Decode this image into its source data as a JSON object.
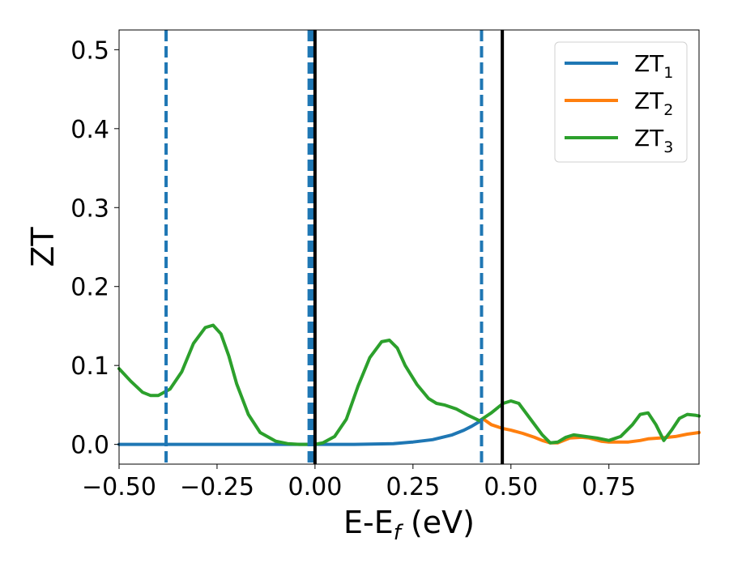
{
  "chart_data": {
    "type": "line",
    "xlabel_main": "E-E",
    "xlabel_sub": "f",
    "xlabel_unit": " (eV)",
    "ylabel": "ZT",
    "xlim": [
      -0.5,
      0.98
    ],
    "ylim": [
      -0.025,
      0.525
    ],
    "x_ticks": [
      -0.5,
      -0.25,
      0.0,
      0.25,
      0.5,
      0.75
    ],
    "x_tick_labels": [
      "−0.50",
      "−0.25",
      "0.00",
      "0.25",
      "0.50",
      "0.75"
    ],
    "y_ticks": [
      0.0,
      0.1,
      0.2,
      0.3,
      0.4,
      0.5
    ],
    "y_tick_labels": [
      "0.0",
      "0.1",
      "0.2",
      "0.3",
      "0.4",
      "0.5"
    ],
    "grid": false,
    "legend_position": "top-right",
    "dashed_vlines": [
      -0.38,
      -0.015,
      -0.008,
      0.425
    ],
    "solid_vlines": [
      0.0,
      0.478
    ],
    "series": [
      {
        "name": "ZT",
        "subscript": "1",
        "color": "#1f77b4",
        "x": [
          -0.5,
          -0.4,
          -0.3,
          -0.2,
          -0.1,
          0.0,
          0.1,
          0.2,
          0.25,
          0.3,
          0.35,
          0.38,
          0.4,
          0.42,
          0.43
        ],
        "y": [
          0.0,
          0.0,
          0.0,
          0.0,
          0.0,
          0.0,
          0.0,
          0.001,
          0.003,
          0.006,
          0.012,
          0.018,
          0.023,
          0.029,
          0.032
        ]
      },
      {
        "name": "ZT",
        "subscript": "2",
        "color": "#ff7f0e",
        "x": [
          0.43,
          0.45,
          0.48,
          0.5,
          0.53,
          0.56,
          0.58,
          0.6,
          0.62,
          0.65,
          0.68,
          0.7,
          0.73,
          0.75,
          0.78,
          0.8,
          0.83,
          0.85,
          0.88,
          0.9,
          0.92,
          0.95,
          0.98
        ],
        "y": [
          0.032,
          0.025,
          0.02,
          0.018,
          0.014,
          0.009,
          0.005,
          0.002,
          0.002,
          0.008,
          0.009,
          0.008,
          0.004,
          0.003,
          0.003,
          0.003,
          0.005,
          0.007,
          0.008,
          0.009,
          0.01,
          0.013,
          0.015
        ]
      },
      {
        "name": "ZT",
        "subscript": "3",
        "color": "#2ca02c",
        "x": [
          -0.5,
          -0.47,
          -0.44,
          -0.42,
          -0.4,
          -0.37,
          -0.34,
          -0.31,
          -0.28,
          -0.26,
          -0.24,
          -0.22,
          -0.2,
          -0.17,
          -0.14,
          -0.1,
          -0.07,
          -0.04,
          -0.02,
          0.0,
          0.02,
          0.05,
          0.08,
          0.11,
          0.14,
          0.17,
          0.19,
          0.21,
          0.23,
          0.26,
          0.29,
          0.31,
          0.33,
          0.36,
          0.39,
          0.42,
          0.45,
          0.48,
          0.5,
          0.52,
          0.55,
          0.58,
          0.6,
          0.62,
          0.64,
          0.66,
          0.69,
          0.72,
          0.75,
          0.78,
          0.81,
          0.83,
          0.85,
          0.87,
          0.89,
          0.91,
          0.93,
          0.95,
          0.97,
          0.98
        ],
        "y": [
          0.096,
          0.08,
          0.066,
          0.062,
          0.062,
          0.07,
          0.092,
          0.128,
          0.148,
          0.151,
          0.14,
          0.112,
          0.077,
          0.038,
          0.015,
          0.004,
          0.001,
          0.0,
          0.0,
          0.0,
          0.002,
          0.01,
          0.032,
          0.074,
          0.11,
          0.13,
          0.132,
          0.122,
          0.1,
          0.076,
          0.058,
          0.052,
          0.05,
          0.045,
          0.037,
          0.03,
          0.04,
          0.052,
          0.055,
          0.052,
          0.032,
          0.012,
          0.002,
          0.003,
          0.009,
          0.012,
          0.01,
          0.008,
          0.005,
          0.01,
          0.025,
          0.038,
          0.04,
          0.025,
          0.005,
          0.018,
          0.033,
          0.038,
          0.037,
          0.036
        ]
      }
    ]
  }
}
